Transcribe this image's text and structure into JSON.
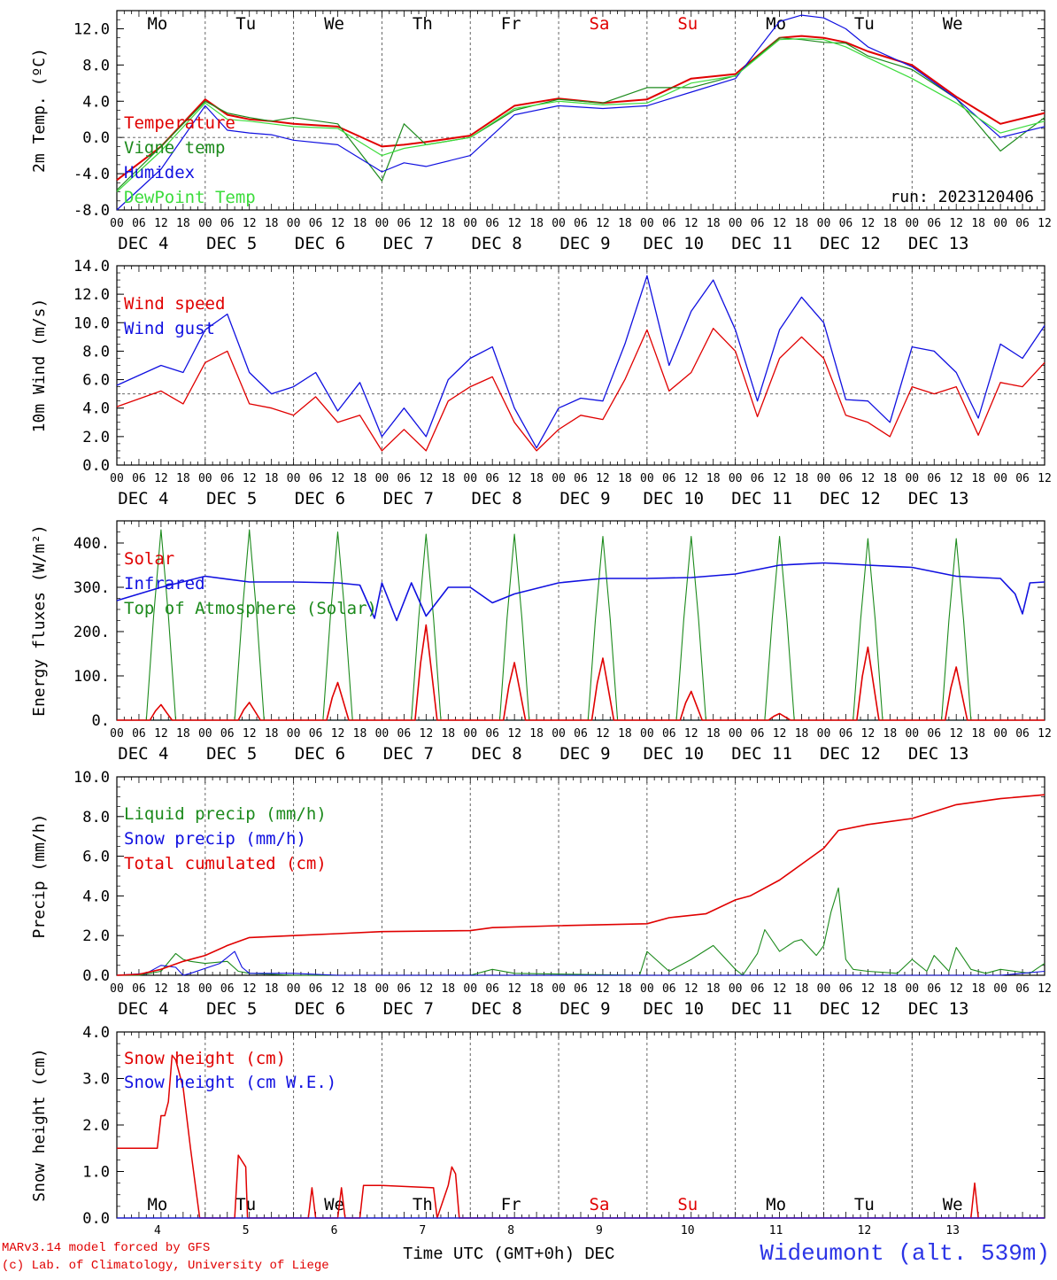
{
  "colors": {
    "red": "#e00000",
    "darkgreen": "#1c8a1c",
    "blue": "#1010e0",
    "lightgreen": "#3cdc3c",
    "grid": "#555555"
  },
  "day_labels": [
    "Mo",
    "Tu",
    "We",
    "Th",
    "Fr",
    "Sa",
    "Su",
    "Mo",
    "Tu",
    "We"
  ],
  "day_label_colors": [
    "#000000",
    "#000000",
    "#000000",
    "#000000",
    "#000000",
    "#e00000",
    "#e00000",
    "#000000",
    "#000000",
    "#000000"
  ],
  "hour_labels": [
    "00",
    "06",
    "12",
    "18"
  ],
  "date_labels": [
    "DEC  4",
    "DEC  5",
    "DEC  6",
    "DEC  7",
    "DEC  8",
    "DEC  9",
    "DEC 10",
    "DEC 11",
    "DEC 12",
    "DEC 13"
  ],
  "bottom_day_numbers": [
    "4",
    "5",
    "6",
    "7",
    "8",
    "9",
    "10",
    "11",
    "12",
    "13"
  ],
  "x_title": "Time UTC (GMT+0h) DEC",
  "credits": [
    "MARv3.14 model forced by GFS",
    "(c) Lab. of Climatology, University of Liege"
  ],
  "station": "Wideumont (alt. 539m)",
  "chart_data": [
    {
      "type": "line",
      "ylabel": "2m Temp. (ºC)",
      "ylim": [
        -8,
        14
      ],
      "yticks": [
        "-8.0",
        "-4.0",
        "0.0",
        "4.0",
        "8.0",
        "12.0"
      ],
      "ytick_values": [
        -8,
        -4,
        0,
        4,
        8,
        12
      ],
      "ref_line": 0,
      "show_days": true,
      "annotation": "run: 2023120406",
      "legend": [
        "Temperature",
        "Vigne temp",
        "Humidex",
        "DewPoint Temp"
      ],
      "x_hours": [
        0,
        12,
        24,
        30,
        36,
        42,
        48,
        60,
        72,
        78,
        84,
        96,
        108,
        120,
        132,
        144,
        156,
        168,
        180,
        186,
        192,
        198,
        204,
        216,
        228,
        240,
        252
      ],
      "series": [
        {
          "name": "Temperature",
          "color": "#e00000",
          "values": [
            -4.7,
            -1.0,
            4.2,
            2.5,
            2.0,
            1.8,
            1.5,
            1.2,
            -1.0,
            -0.8,
            -0.5,
            0.2,
            3.5,
            4.3,
            3.8,
            4.2,
            6.5,
            7.0,
            11.0,
            11.2,
            11.0,
            10.5,
            9.5,
            8.0,
            4.5,
            1.5,
            2.7
          ]
        },
        {
          "name": "Vigne temp",
          "color": "#1c8a1c",
          "values": [
            -5.8,
            -1.0,
            4.0,
            2.7,
            2.2,
            1.8,
            2.2,
            1.5,
            -4.8,
            1.5,
            -0.8,
            0.0,
            3.0,
            4.2,
            3.8,
            5.5,
            5.5,
            6.8,
            11.0,
            10.8,
            10.5,
            10.4,
            9.0,
            7.5,
            4.3,
            -1.5,
            2.2
          ]
        },
        {
          "name": "Humidex",
          "color": "#1010e0",
          "values": [
            -8.0,
            -3.5,
            3.5,
            0.8,
            0.5,
            0.3,
            -0.3,
            -0.8,
            -3.8,
            -2.8,
            -3.2,
            -2.0,
            2.5,
            3.5,
            3.2,
            3.5,
            5.0,
            6.5,
            12.8,
            13.5,
            13.2,
            12.0,
            10.0,
            7.8,
            4.3,
            0.0,
            1.2
          ]
        },
        {
          "name": "DewPoint Temp",
          "color": "#3cdc3c",
          "values": [
            -6.0,
            -1.5,
            3.8,
            2.0,
            1.8,
            1.5,
            1.2,
            1.0,
            -2.0,
            -1.2,
            -0.8,
            0.0,
            3.2,
            4.0,
            3.6,
            3.8,
            6.0,
            6.8,
            10.8,
            10.9,
            10.8,
            10.0,
            8.8,
            6.5,
            3.8,
            0.5,
            1.8
          ]
        }
      ]
    },
    {
      "type": "line",
      "ylabel": "10m Wind (m/s)",
      "ylim": [
        0,
        14
      ],
      "yticks": [
        "0.0",
        "2.0",
        "4.0",
        "6.0",
        "8.0",
        "10.0",
        "12.0",
        "14.0"
      ],
      "ytick_values": [
        0,
        2,
        4,
        6,
        8,
        10,
        12,
        14
      ],
      "ref_line": 5,
      "show_days": false,
      "legend": [
        "Wind speed",
        "Wind gust"
      ],
      "x_hours": [
        0,
        12,
        18,
        24,
        30,
        36,
        42,
        48,
        54,
        60,
        66,
        72,
        78,
        84,
        90,
        96,
        102,
        108,
        114,
        120,
        126,
        132,
        138,
        144,
        150,
        156,
        162,
        168,
        174,
        180,
        186,
        192,
        198,
        204,
        210,
        216,
        222,
        228,
        234,
        240,
        246,
        252
      ],
      "series": [
        {
          "name": "Wind speed",
          "color": "#e00000",
          "values": [
            4.1,
            5.2,
            4.3,
            7.2,
            8.0,
            4.3,
            4.0,
            3.5,
            4.8,
            3.0,
            3.5,
            1.0,
            2.5,
            1.0,
            4.5,
            5.5,
            6.2,
            3.0,
            1.0,
            2.5,
            3.5,
            3.2,
            6.0,
            9.5,
            5.2,
            6.5,
            9.6,
            8.0,
            3.4,
            7.5,
            9.0,
            7.5,
            3.5,
            3.0,
            2.0,
            5.5,
            5.0,
            5.5,
            2.1,
            5.8,
            5.5,
            7.2
          ]
        },
        {
          "name": "Wind gust",
          "color": "#1010e0",
          "values": [
            5.6,
            7.0,
            6.5,
            9.5,
            10.6,
            6.5,
            5.0,
            5.5,
            6.5,
            3.8,
            5.8,
            2.0,
            4.0,
            2.0,
            6.0,
            7.5,
            8.3,
            4.0,
            1.2,
            4.0,
            4.7,
            4.5,
            8.5,
            13.3,
            7.0,
            10.8,
            13.0,
            9.5,
            4.5,
            9.5,
            11.8,
            10.0,
            4.6,
            4.5,
            3.0,
            8.3,
            8.0,
            6.5,
            3.3,
            8.5,
            7.5,
            9.8
          ]
        }
      ]
    },
    {
      "type": "line",
      "ylabel": "Energy fluxes (W/m²)",
      "ylim": [
        0,
        450
      ],
      "yticks": [
        "0.",
        "100.",
        "200.",
        "300.",
        "400."
      ],
      "ytick_values": [
        0,
        100,
        200,
        300,
        400
      ],
      "ref_line": null,
      "show_days": false,
      "legend": [
        "Solar",
        "Infrared",
        "Top of Atmosphere (Solar)"
      ],
      "toa_peaks": [
        430,
        430,
        425,
        420,
        420,
        415,
        415,
        415,
        410,
        410
      ],
      "solar_peaks": [
        35,
        40,
        85,
        215,
        130,
        140,
        65,
        15,
        165,
        120
      ],
      "infrared": {
        "x_hours": [
          0,
          12,
          24,
          36,
          48,
          60,
          66,
          70,
          72,
          76,
          80,
          84,
          90,
          96,
          102,
          108,
          120,
          132,
          144,
          156,
          168,
          180,
          192,
          204,
          216,
          228,
          240,
          244,
          246,
          248,
          252
        ],
        "values": [
          270,
          300,
          325,
          312,
          312,
          310,
          305,
          230,
          310,
          225,
          310,
          235,
          300,
          300,
          265,
          285,
          310,
          320,
          320,
          322,
          330,
          350,
          355,
          350,
          345,
          325,
          320,
          285,
          240,
          310,
          312
        ]
      }
    },
    {
      "type": "line",
      "ylabel": "Precip (mm/h)",
      "ylim": [
        0,
        10
      ],
      "yticks": [
        "0.0",
        "2.0",
        "4.0",
        "6.0",
        "8.0",
        "10.0"
      ],
      "ytick_values": [
        0,
        2,
        4,
        6,
        8,
        10
      ],
      "ref_line": null,
      "show_days": false,
      "legend": [
        "Liquid precip (mm/h)",
        "Snow precip (mm/h)",
        "Total cumulated (cm)"
      ],
      "liquid": {
        "x_hours": [
          0,
          6,
          12,
          16,
          18,
          20,
          24,
          30,
          33,
          36,
          48,
          96,
          102,
          108,
          142,
          144,
          150,
          156,
          162,
          168,
          170,
          174,
          176,
          180,
          184,
          186,
          190,
          192,
          194,
          196,
          198,
          200,
          204,
          212,
          216,
          220,
          222,
          226,
          228,
          232,
          236,
          240,
          244,
          248,
          252
        ],
        "values": [
          0,
          0,
          0.2,
          1.1,
          0.8,
          0.7,
          0.6,
          0.7,
          0.2,
          0.1,
          0,
          0,
          0.3,
          0.1,
          0,
          1.2,
          0.2,
          0.8,
          1.5,
          0.3,
          0,
          1.1,
          2.3,
          1.2,
          1.7,
          1.8,
          1.0,
          1.5,
          3.2,
          4.4,
          0.8,
          0.3,
          0.2,
          0.1,
          0.8,
          0.2,
          1.0,
          0.2,
          1.4,
          0.3,
          0.1,
          0.3,
          0.2,
          0.1,
          0.6
        ]
      },
      "snow": {
        "x_hours": [
          0,
          8,
          12,
          16,
          18,
          20,
          28,
          32,
          34,
          36,
          48,
          60,
          96,
          240,
          252
        ],
        "values": [
          0,
          0.1,
          0.5,
          0.4,
          0,
          0.1,
          0.6,
          1.2,
          0.4,
          0.1,
          0.1,
          0,
          0,
          0,
          0.2
        ]
      },
      "cumulated": {
        "x_hours": [
          0,
          6,
          12,
          18,
          24,
          30,
          36,
          48,
          60,
          72,
          96,
          102,
          120,
          144,
          150,
          160,
          168,
          172,
          180,
          186,
          192,
          196,
          204,
          216,
          228,
          240,
          252
        ],
        "values": [
          0,
          0.05,
          0.3,
          0.7,
          1.0,
          1.5,
          1.9,
          2.0,
          2.1,
          2.2,
          2.25,
          2.4,
          2.5,
          2.6,
          2.9,
          3.1,
          3.8,
          4.0,
          4.8,
          5.6,
          6.4,
          7.3,
          7.6,
          7.9,
          8.6,
          8.9,
          9.1
        ]
      }
    },
    {
      "type": "line",
      "ylabel": "Snow height (cm)",
      "ylim": [
        0,
        4
      ],
      "yticks": [
        "0.0",
        "1.0",
        "2.0",
        "3.0",
        "4.0"
      ],
      "ytick_values": [
        0,
        1,
        2,
        3,
        4
      ],
      "ref_line": null,
      "show_days": true,
      "legend": [
        "Snow height (cm)",
        "Snow height (cm W.E.)"
      ],
      "series": [
        {
          "name": "Snow height (cm)",
          "color": "#e00000",
          "x_hours": [
            0,
            11,
            12,
            13,
            14,
            15,
            16,
            18,
            20,
            22,
            22.5,
            32,
            33,
            35,
            35.5,
            52,
            53,
            54,
            60,
            61,
            62,
            66,
            67,
            72,
            86,
            87,
            90,
            91,
            92,
            93,
            252
          ],
          "values": [
            1.5,
            1.5,
            2.2,
            2.2,
            2.5,
            3.5,
            3.4,
            2.8,
            1.5,
            0.3,
            0,
            0,
            1.35,
            1.1,
            0,
            0,
            0.65,
            0,
            0,
            0.65,
            0,
            0,
            0.7,
            0.7,
            0.65,
            0,
            0.7,
            1.1,
            0.95,
            0,
            0
          ]
        },
        {
          "name": "Snow height (cm W.E.)",
          "color": "#1010e0",
          "x_hours": [
            0,
            252
          ],
          "values": [
            0,
            0
          ]
        }
      ],
      "extra_spike": {
        "x_hours": [
          232,
          233,
          234
        ],
        "values": [
          0,
          0.75,
          0
        ]
      }
    }
  ]
}
